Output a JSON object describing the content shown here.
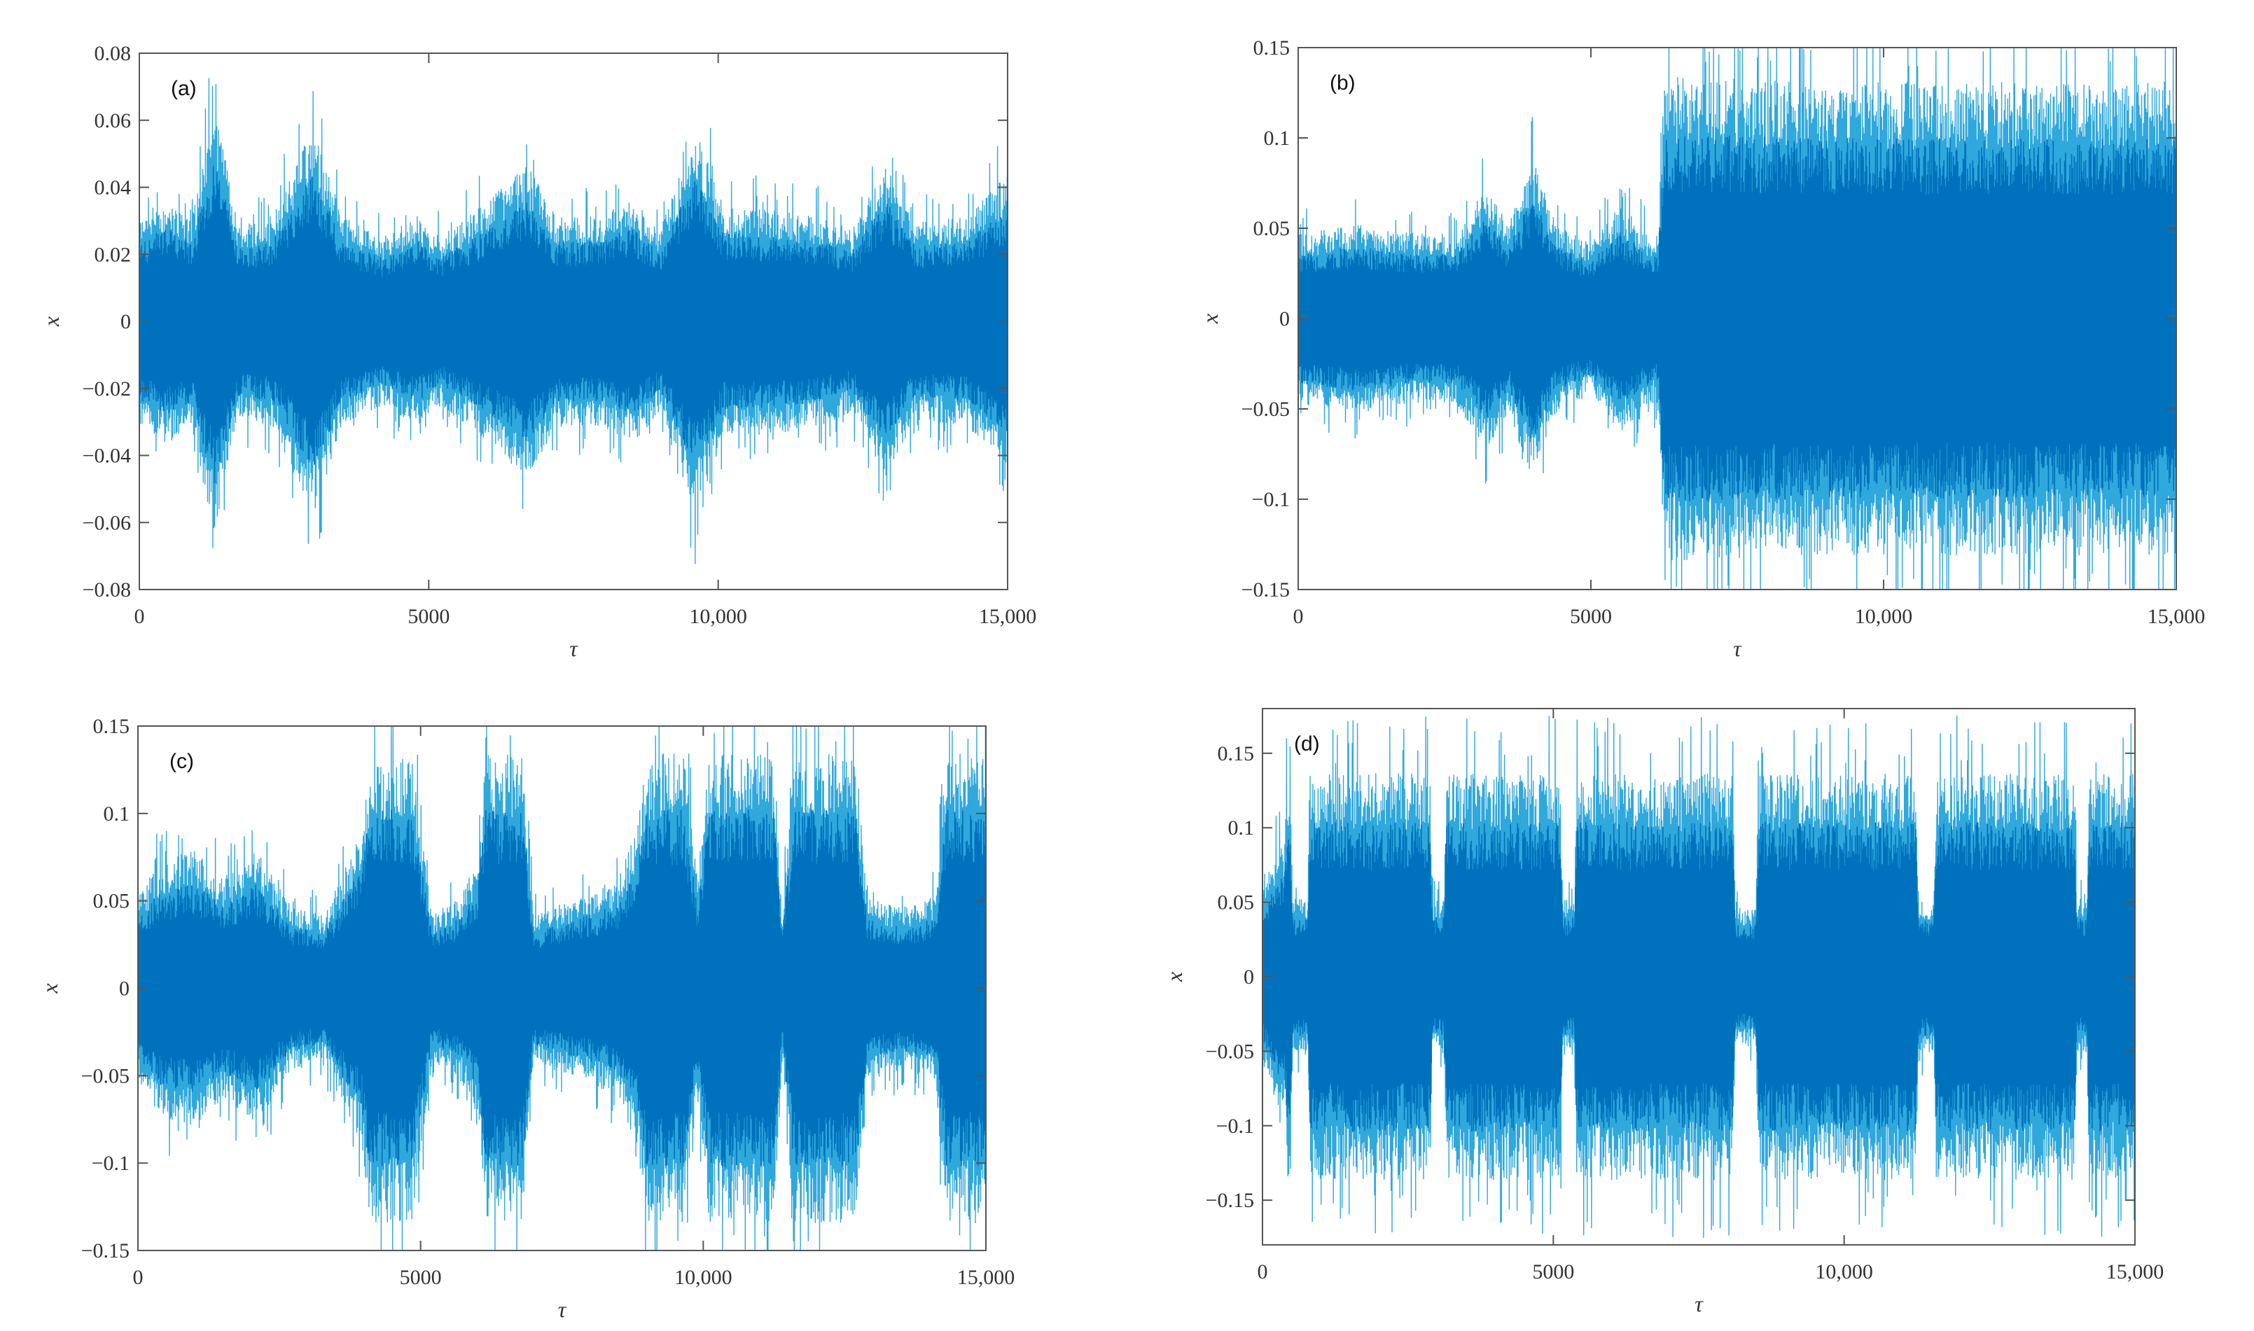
{
  "colors": {
    "core": "#0072bd",
    "edge": "#2fa8dc",
    "axis": "#555555"
  },
  "chart_data": [
    {
      "type": "line",
      "panel_label": "(a)",
      "xlabel": "τ",
      "ylabel": "x",
      "xlim": [
        0,
        15000
      ],
      "ylim": [
        -0.08,
        0.08
      ],
      "xticks": [
        0,
        5000,
        10000,
        15000
      ],
      "xtick_labels": [
        "0",
        "5000",
        "10,000",
        "15,000"
      ],
      "yticks": [
        0.08,
        0.06,
        0.04,
        0.02,
        0,
        -0.02,
        -0.04,
        -0.06,
        -0.08
      ],
      "ytick_labels": [
        "0.08",
        "0.06",
        "0.04",
        "0.02",
        "0",
        "−0.02",
        "−0.04",
        "−0.06",
        "−0.08"
      ],
      "envelope": [
        [
          0,
          0.03
        ],
        [
          500,
          0.035
        ],
        [
          900,
          0.03
        ],
        [
          1300,
          0.062
        ],
        [
          1700,
          0.028
        ],
        [
          2300,
          0.03
        ],
        [
          3000,
          0.056
        ],
        [
          3500,
          0.03
        ],
        [
          4200,
          0.024
        ],
        [
          4800,
          0.03
        ],
        [
          5200,
          0.024
        ],
        [
          6000,
          0.034
        ],
        [
          6700,
          0.045
        ],
        [
          7200,
          0.03
        ],
        [
          8000,
          0.03
        ],
        [
          8500,
          0.035
        ],
        [
          9000,
          0.026
        ],
        [
          9600,
          0.055
        ],
        [
          10100,
          0.033
        ],
        [
          11000,
          0.032
        ],
        [
          11800,
          0.03
        ],
        [
          12300,
          0.026
        ],
        [
          12900,
          0.045
        ],
        [
          13400,
          0.028
        ],
        [
          14300,
          0.03
        ],
        [
          15000,
          0.042
        ]
      ]
    },
    {
      "type": "line",
      "panel_label": "(b)",
      "xlabel": "τ",
      "ylabel": "x",
      "xlim": [
        0,
        15000
      ],
      "ylim": [
        -0.15,
        0.15
      ],
      "xticks": [
        0,
        5000,
        10000,
        15000
      ],
      "xtick_labels": [
        "0",
        "5000",
        "10,000",
        "15,000"
      ],
      "yticks": [
        0.15,
        0.1,
        0.05,
        0,
        -0.05,
        -0.1,
        -0.15
      ],
      "ytick_labels": [
        "0.15",
        "0.1",
        "0.05",
        "0",
        "−0.05",
        "−0.1",
        "−0.15"
      ],
      "envelope": [
        [
          0,
          0.045
        ],
        [
          1000,
          0.05
        ],
        [
          2000,
          0.045
        ],
        [
          2700,
          0.045
        ],
        [
          3200,
          0.07
        ],
        [
          3600,
          0.05
        ],
        [
          4000,
          0.085
        ],
        [
          4400,
          0.05
        ],
        [
          5000,
          0.04
        ],
        [
          5500,
          0.06
        ],
        [
          6000,
          0.045
        ],
        [
          6150,
          0.045
        ],
        [
          6250,
          0.128
        ],
        [
          9000,
          0.125
        ],
        [
          12000,
          0.125
        ],
        [
          15000,
          0.125
        ]
      ]
    },
    {
      "type": "line",
      "panel_label": "(c)",
      "xlabel": "τ",
      "ylabel": "x",
      "xlim": [
        0,
        15000
      ],
      "ylim": [
        -0.15,
        0.15
      ],
      "xticks": [
        0,
        5000,
        10000,
        15000
      ],
      "xtick_labels": [
        "0",
        "5000",
        "10,000",
        "15,000"
      ],
      "yticks": [
        0.15,
        0.1,
        0.05,
        0,
        -0.05,
        -0.1,
        -0.15
      ],
      "ytick_labels": [
        "0.15",
        "0.1",
        "0.05",
        "0",
        "−0.05",
        "−0.1",
        "−0.15"
      ],
      "envelope": [
        [
          0,
          0.05
        ],
        [
          400,
          0.07
        ],
        [
          1000,
          0.075
        ],
        [
          1500,
          0.06
        ],
        [
          2100,
          0.075
        ],
        [
          2700,
          0.045
        ],
        [
          3300,
          0.04
        ],
        [
          3700,
          0.07
        ],
        [
          3950,
          0.085
        ],
        [
          4100,
          0.128
        ],
        [
          4850,
          0.128
        ],
        [
          5200,
          0.04
        ],
        [
          5700,
          0.05
        ],
        [
          6000,
          0.07
        ],
        [
          6150,
          0.128
        ],
        [
          6800,
          0.128
        ],
        [
          7000,
          0.04
        ],
        [
          7800,
          0.05
        ],
        [
          8500,
          0.06
        ],
        [
          8850,
          0.09
        ],
        [
          9000,
          0.128
        ],
        [
          9650,
          0.128
        ],
        [
          9900,
          0.06
        ],
        [
          10100,
          0.128
        ],
        [
          11250,
          0.128
        ],
        [
          11400,
          0.04
        ],
        [
          11600,
          0.128
        ],
        [
          12700,
          0.128
        ],
        [
          12900,
          0.05
        ],
        [
          13500,
          0.045
        ],
        [
          14100,
          0.05
        ],
        [
          14300,
          0.128
        ],
        [
          15000,
          0.128
        ]
      ]
    },
    {
      "type": "line",
      "panel_label": "(d)",
      "xlabel": "τ",
      "ylabel": "x",
      "xlim": [
        0,
        15000
      ],
      "ylim": [
        -0.18,
        0.18
      ],
      "xticks": [
        0,
        5000,
        10000,
        15000
      ],
      "xtick_labels": [
        "0",
        "5000",
        "10,000",
        "15,000"
      ],
      "yticks": [
        0.15,
        0.1,
        0.05,
        0,
        -0.05,
        -0.1,
        -0.15
      ],
      "ytick_labels": [
        "0.15",
        "0.1",
        "0.05",
        "0",
        "−0.05",
        "−0.1",
        "−0.15"
      ],
      "envelope": [
        [
          0,
          0.055
        ],
        [
          200,
          0.08
        ],
        [
          380,
          0.085
        ],
        [
          420,
          0.128
        ],
        [
          480,
          0.128
        ],
        [
          520,
          0.05
        ],
        [
          780,
          0.05
        ],
        [
          820,
          0.13
        ],
        [
          2880,
          0.13
        ],
        [
          2920,
          0.05
        ],
        [
          3120,
          0.05
        ],
        [
          3160,
          0.13
        ],
        [
          5120,
          0.13
        ],
        [
          5160,
          0.05
        ],
        [
          5360,
          0.05
        ],
        [
          5400,
          0.13
        ],
        [
          8080,
          0.13
        ],
        [
          8130,
          0.045
        ],
        [
          8480,
          0.045
        ],
        [
          8530,
          0.13
        ],
        [
          11230,
          0.13
        ],
        [
          11280,
          0.05
        ],
        [
          11540,
          0.05
        ],
        [
          11590,
          0.13
        ],
        [
          13960,
          0.13
        ],
        [
          14000,
          0.05
        ],
        [
          14170,
          0.05
        ],
        [
          14220,
          0.13
        ],
        [
          15000,
          0.13
        ]
      ]
    }
  ]
}
